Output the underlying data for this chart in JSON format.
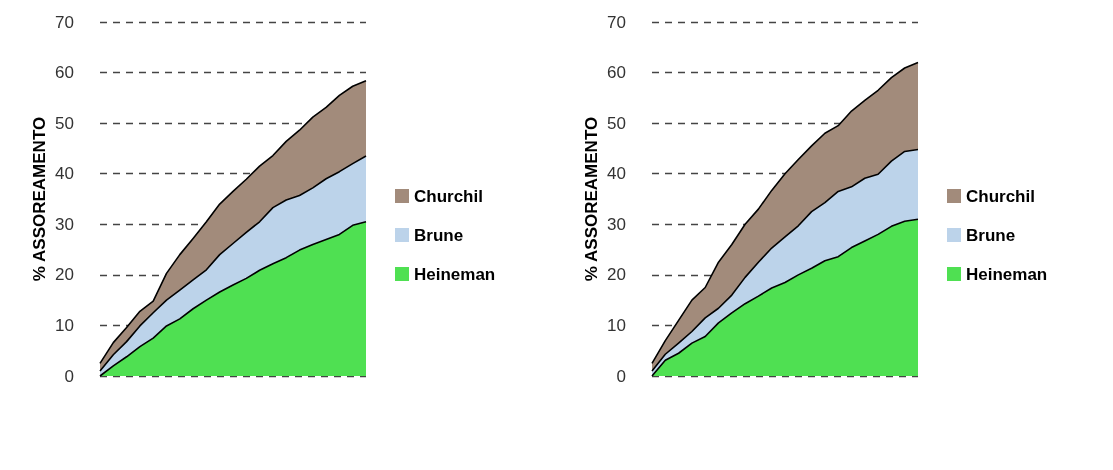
{
  "chart_data": [
    {
      "type": "area",
      "stacked": true,
      "ylabel": "% ASSOREAMENTO",
      "categories": [
        null,
        null,
        null,
        null,
        null,
        null,
        null,
        null,
        null,
        null,
        null,
        null,
        null,
        null,
        null,
        null,
        null,
        null,
        null,
        null,
        null
      ],
      "ylim": [
        0,
        70
      ],
      "yticks": [
        0,
        10,
        20,
        30,
        40,
        50,
        60,
        70
      ],
      "grid": "y",
      "legend": "right",
      "tick_labels": "y",
      "series": [
        {
          "name": "Heineman",
          "color": "#4fe052",
          "values": [
            0,
            2.0,
            3.8,
            5.8,
            7.5,
            9.9,
            11.3,
            13.3,
            15.0,
            16.6,
            18.0,
            19.3,
            20.9,
            22.2,
            23.4,
            24.9,
            26.0,
            27.0,
            28.0,
            29.8,
            30.5
          ]
        },
        {
          "name": "Brune",
          "color": "#bcd3ea",
          "values": [
            1,
            2.2,
            3.0,
            4.1,
            5.0,
            5.1,
            5.7,
            5.7,
            6.0,
            7.4,
            8.2,
            9.1,
            9.6,
            11.1,
            11.4,
            10.8,
            11.2,
            12.0,
            12.4,
            12.2,
            13.0
          ]
        },
        {
          "name": "Churchil",
          "color": "#a28b7b",
          "values": [
            1.5,
            2.4,
            2.8,
            2.9,
            2.3,
            5.3,
            7.0,
            8.2,
            9.5,
            10.0,
            10.3,
            10.5,
            11.0,
            10.3,
            11.6,
            12.9,
            14.0,
            14.1,
            15.1,
            15.3,
            14.9
          ]
        }
      ]
    },
    {
      "type": "area",
      "stacked": true,
      "ylabel": "% ASSOREAMENTO",
      "categories": [
        null,
        null,
        null,
        null,
        null,
        null,
        null,
        null,
        null,
        null,
        null,
        null,
        null,
        null,
        null,
        null,
        null,
        null,
        null,
        null,
        null
      ],
      "ylim": [
        0,
        70
      ],
      "yticks": [
        0,
        10,
        20,
        30,
        40,
        50,
        60,
        70
      ],
      "grid": "y",
      "legend": "right",
      "tick_labels": "y",
      "series": [
        {
          "name": "Heineman",
          "color": "#4fe052",
          "values": [
            0,
            3.1,
            4.5,
            6.5,
            7.8,
            10.5,
            12.5,
            14.3,
            15.8,
            17.4,
            18.5,
            20.0,
            21.3,
            22.8,
            23.6,
            25.4,
            26.7,
            28.0,
            29.6,
            30.6,
            31.0
          ]
        },
        {
          "name": "Brune",
          "color": "#bcd3ea",
          "values": [
            1,
            1.2,
            2.0,
            2.3,
            3.7,
            2.9,
            3.5,
            5.2,
            6.7,
            7.9,
            9.0,
            9.7,
            11.2,
            11.5,
            12.9,
            12.0,
            12.4,
            11.9,
            12.9,
            13.8,
            13.8
          ]
        },
        {
          "name": "Churchil",
          "color": "#a28b7b",
          "values": [
            1.5,
            2.7,
            4.5,
            6.2,
            6.0,
            9.1,
            10.0,
            10.5,
            10.5,
            11.4,
            12.5,
            13.1,
            13.0,
            13.7,
            13.0,
            15.0,
            15.4,
            16.6,
            16.5,
            16.5,
            17.2
          ]
        }
      ]
    }
  ]
}
